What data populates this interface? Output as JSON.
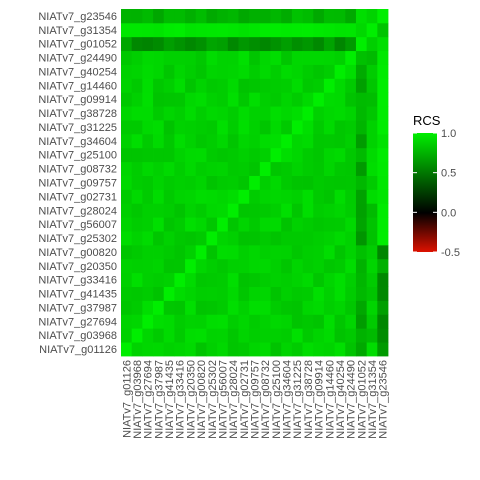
{
  "chart_data": {
    "type": "heatmap",
    "labels": [
      "NIATv7_g01126",
      "NIATv7_g03968",
      "NIATv7_g27694",
      "NIATv7_g37987",
      "NIATv7_g41435",
      "NIATv7_g33416",
      "NIATv7_g20350",
      "NIATv7_g00820",
      "NIATv7_g25302",
      "NIATv7_g56007",
      "NIATv7_g28024",
      "NIATv7_g02731",
      "NIATv7_g09757",
      "NIATv7_g08732",
      "NIATv7_g25100",
      "NIATv7_g34604",
      "NIATv7_g31225",
      "NIATv7_g38728",
      "NIATv7_g09914",
      "NIATv7_g14460",
      "NIATv7_g40254",
      "NIATv7_g24490",
      "NIATv7_g01052",
      "NIATv7_g31354",
      "NIATv7_g23546"
    ],
    "legend": {
      "title": "RCS",
      "ticks": [
        "1.0",
        "0.5",
        "0.0",
        "-0.5"
      ],
      "tick_values": [
        1.0,
        0.5,
        0.0,
        -0.5
      ],
      "range": [
        -0.5,
        1.0
      ],
      "colors": {
        "low": "#dd1100",
        "mid": "#000000",
        "high": "#00ee00"
      }
    },
    "value_range": [
      0.45,
      1.0
    ],
    "diagonal": 1.0
  }
}
